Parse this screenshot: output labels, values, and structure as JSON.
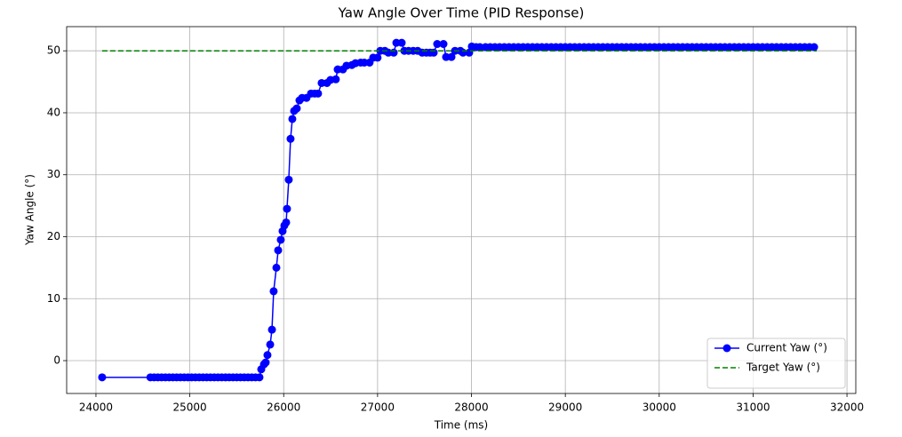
{
  "chart_data": {
    "type": "line",
    "title": "Yaw Angle Over Time (PID Response)",
    "x_label": "Time (ms)",
    "y_label": "Yaw Angle (°)",
    "xlim": [
      23688,
      32094
    ],
    "ylim": [
      -5.3,
      53.9
    ],
    "xticks": [
      24000,
      25000,
      26000,
      27000,
      28000,
      29000,
      30000,
      31000,
      32000
    ],
    "yticks": [
      0,
      10,
      20,
      30,
      40,
      50
    ],
    "grid": true,
    "legend": "lower right",
    "series": [
      {
        "name": "Current Yaw (°)",
        "color": "#0000ff",
        "marker": "circle",
        "linestyle": "solid",
        "x": [
          24066,
          24580,
          24620,
          24660,
          24700,
          24740,
          24780,
          24820,
          24860,
          24900,
          24940,
          24980,
          25020,
          25060,
          25100,
          25140,
          25180,
          25220,
          25260,
          25300,
          25340,
          25380,
          25420,
          25460,
          25500,
          25540,
          25580,
          25620,
          25660,
          25700,
          25742,
          25761,
          25790,
          25808,
          25827,
          25856,
          25875,
          25893,
          25922,
          25941,
          25969,
          25988,
          26007,
          26026,
          26035,
          26054,
          26073,
          26092,
          26111,
          26139,
          26168,
          26196,
          26243,
          26291,
          26330,
          26366,
          26404,
          26461,
          26498,
          26555,
          26575,
          26631,
          26669,
          26726,
          26764,
          26820,
          26859,
          26915,
          26953,
          27000,
          27029,
          27077,
          27115,
          27172,
          27200,
          27257,
          27285,
          27330,
          27380,
          27427,
          27475,
          27520,
          27560,
          27598,
          27635,
          27702,
          27730,
          27787,
          27825,
          27882,
          27910,
          27976,
          28004,
          28050,
          28090,
          28150,
          28200,
          28250,
          28300,
          28350,
          28400,
          28450,
          28500,
          28550,
          28600,
          28650,
          28700,
          28750,
          28800,
          28850,
          28900,
          28950,
          29000,
          29050,
          29100,
          29150,
          29200,
          29250,
          29300,
          29350,
          29400,
          29450,
          29500,
          29550,
          29600,
          29650,
          29700,
          29750,
          29800,
          29850,
          29900,
          29950,
          30000,
          30050,
          30100,
          30150,
          30200,
          30250,
          30300,
          30350,
          30400,
          30450,
          30500,
          30550,
          30600,
          30650,
          30700,
          30750,
          30800,
          30850,
          30900,
          30950,
          31000,
          31050,
          31100,
          31150,
          31200,
          31250,
          31300,
          31350,
          31400,
          31450,
          31500,
          31550,
          31600,
          31650
        ],
        "values": [
          -2.7,
          -2.7,
          -2.7,
          -2.7,
          -2.7,
          -2.7,
          -2.7,
          -2.7,
          -2.7,
          -2.7,
          -2.7,
          -2.7,
          -2.7,
          -2.7,
          -2.7,
          -2.7,
          -2.7,
          -2.7,
          -2.7,
          -2.7,
          -2.7,
          -2.7,
          -2.7,
          -2.7,
          -2.7,
          -2.7,
          -2.7,
          -2.7,
          -2.7,
          -2.7,
          -2.7,
          -1.4,
          -0.6,
          -0.3,
          0.9,
          2.6,
          5,
          11.2,
          15,
          17.8,
          19.5,
          20.9,
          21.8,
          22.3,
          24.5,
          29.2,
          35.8,
          39,
          40.3,
          40.7,
          42,
          42.4,
          42.4,
          43.1,
          43.1,
          43.1,
          44.8,
          44.8,
          45.3,
          45.4,
          47,
          47,
          47.6,
          47.7,
          48,
          48.1,
          48.1,
          48.1,
          48.9,
          48.9,
          50,
          50,
          49.7,
          49.7,
          51.3,
          51.3,
          50,
          50,
          50,
          50,
          49.7,
          49.7,
          49.7,
          49.7,
          51.1,
          51.1,
          49,
          49,
          50,
          50,
          49.7,
          49.7,
          50.7,
          50.6,
          50.6,
          50.6,
          50.6,
          50.6,
          50.6,
          50.6,
          50.6,
          50.6,
          50.6,
          50.6,
          50.6,
          50.6,
          50.6,
          50.6,
          50.6,
          50.6,
          50.6,
          50.6,
          50.6,
          50.6,
          50.6,
          50.6,
          50.6,
          50.6,
          50.6,
          50.6,
          50.6,
          50.6,
          50.6,
          50.6,
          50.6,
          50.6,
          50.6,
          50.6,
          50.6,
          50.6,
          50.6,
          50.6,
          50.6,
          50.6,
          50.6,
          50.6,
          50.6,
          50.6,
          50.6,
          50.6,
          50.6,
          50.6,
          50.6,
          50.6,
          50.6,
          50.6,
          50.6,
          50.6,
          50.6,
          50.6,
          50.6,
          50.6,
          50.6,
          50.6,
          50.6,
          50.6,
          50.6,
          50.6,
          50.6,
          50.6,
          50.6,
          50.6,
          50.6,
          50.6,
          50.6,
          50.6
        ]
      },
      {
        "name": "Target Yaw (°)",
        "color": "#008000",
        "linestyle": "dashed",
        "x": [
          24066,
          31678
        ],
        "values": [
          50,
          50
        ]
      }
    ]
  }
}
